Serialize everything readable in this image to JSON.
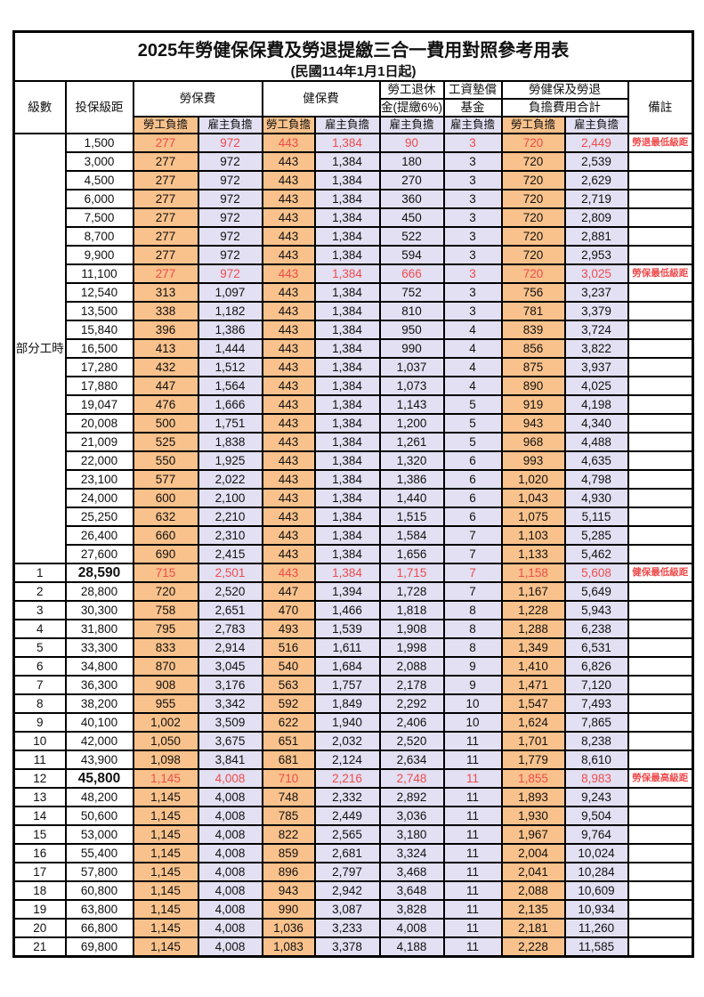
{
  "page": {
    "title": "2025年勞健保保費及勞退提繳三合一費用對照參考用表",
    "subtitle": "(民國114年1月1日起)"
  },
  "colors": {
    "labor_share_bg": "#F9C28C",
    "employer_share_bg": "#E2E0F2",
    "highlight_text": "#F04B4C",
    "border": "#000000"
  },
  "header": {
    "level": "級數",
    "bracket": "投保級距",
    "labor_ins": "勞保費",
    "health_ins": "健保費",
    "pension_l1": "勞工退休",
    "pension_l2": "金(提繳6%)",
    "fund_l1": "工資墊償",
    "fund_l2": "基金",
    "total_l1": "勞健保及勞退",
    "total_l2": "負擔費用合計",
    "remark": "備註",
    "labor_share": "勞工負擔",
    "employer_share": "雇主負擔"
  },
  "part_time": {
    "label": "部分工時",
    "span": 23
  },
  "table": {
    "rows": [
      {
        "lv": "",
        "br": "1,500",
        "v": [
          "277",
          "972",
          "443",
          "1,384",
          "90",
          "3",
          "720",
          "2,449"
        ],
        "rm": "勞退最低級距",
        "red": true,
        "big": false
      },
      {
        "lv": "",
        "br": "3,000",
        "v": [
          "277",
          "972",
          "443",
          "1,384",
          "180",
          "3",
          "720",
          "2,539"
        ],
        "rm": "",
        "red": false,
        "big": false
      },
      {
        "lv": "",
        "br": "4,500",
        "v": [
          "277",
          "972",
          "443",
          "1,384",
          "270",
          "3",
          "720",
          "2,629"
        ],
        "rm": "",
        "red": false,
        "big": false
      },
      {
        "lv": "",
        "br": "6,000",
        "v": [
          "277",
          "972",
          "443",
          "1,384",
          "360",
          "3",
          "720",
          "2,719"
        ],
        "rm": "",
        "red": false,
        "big": false
      },
      {
        "lv": "",
        "br": "7,500",
        "v": [
          "277",
          "972",
          "443",
          "1,384",
          "450",
          "3",
          "720",
          "2,809"
        ],
        "rm": "",
        "red": false,
        "big": false
      },
      {
        "lv": "",
        "br": "8,700",
        "v": [
          "277",
          "972",
          "443",
          "1,384",
          "522",
          "3",
          "720",
          "2,881"
        ],
        "rm": "",
        "red": false,
        "big": false
      },
      {
        "lv": "",
        "br": "9,900",
        "v": [
          "277",
          "972",
          "443",
          "1,384",
          "594",
          "3",
          "720",
          "2,953"
        ],
        "rm": "",
        "red": false,
        "big": false
      },
      {
        "lv": "",
        "br": "11,100",
        "v": [
          "277",
          "972",
          "443",
          "1,384",
          "666",
          "3",
          "720",
          "3,025"
        ],
        "rm": "勞保最低級距",
        "red": true,
        "big": false
      },
      {
        "lv": "",
        "br": "12,540",
        "v": [
          "313",
          "1,097",
          "443",
          "1,384",
          "752",
          "3",
          "756",
          "3,237"
        ],
        "rm": "",
        "red": false,
        "big": false
      },
      {
        "lv": "",
        "br": "13,500",
        "v": [
          "338",
          "1,182",
          "443",
          "1,384",
          "810",
          "3",
          "781",
          "3,379"
        ],
        "rm": "",
        "red": false,
        "big": false
      },
      {
        "lv": "",
        "br": "15,840",
        "v": [
          "396",
          "1,386",
          "443",
          "1,384",
          "950",
          "4",
          "839",
          "3,724"
        ],
        "rm": "",
        "red": false,
        "big": false
      },
      {
        "lv": "",
        "br": "16,500",
        "v": [
          "413",
          "1,444",
          "443",
          "1,384",
          "990",
          "4",
          "856",
          "3,822"
        ],
        "rm": "",
        "red": false,
        "big": false
      },
      {
        "lv": "",
        "br": "17,280",
        "v": [
          "432",
          "1,512",
          "443",
          "1,384",
          "1,037",
          "4",
          "875",
          "3,937"
        ],
        "rm": "",
        "red": false,
        "big": false
      },
      {
        "lv": "",
        "br": "17,880",
        "v": [
          "447",
          "1,564",
          "443",
          "1,384",
          "1,073",
          "4",
          "890",
          "4,025"
        ],
        "rm": "",
        "red": false,
        "big": false
      },
      {
        "lv": "",
        "br": "19,047",
        "v": [
          "476",
          "1,666",
          "443",
          "1,384",
          "1,143",
          "5",
          "919",
          "4,198"
        ],
        "rm": "",
        "red": false,
        "big": false
      },
      {
        "lv": "",
        "br": "20,008",
        "v": [
          "500",
          "1,751",
          "443",
          "1,384",
          "1,200",
          "5",
          "943",
          "4,340"
        ],
        "rm": "",
        "red": false,
        "big": false
      },
      {
        "lv": "",
        "br": "21,009",
        "v": [
          "525",
          "1,838",
          "443",
          "1,384",
          "1,261",
          "5",
          "968",
          "4,488"
        ],
        "rm": "",
        "red": false,
        "big": false
      },
      {
        "lv": "",
        "br": "22,000",
        "v": [
          "550",
          "1,925",
          "443",
          "1,384",
          "1,320",
          "6",
          "993",
          "4,635"
        ],
        "rm": "",
        "red": false,
        "big": false
      },
      {
        "lv": "",
        "br": "23,100",
        "v": [
          "577",
          "2,022",
          "443",
          "1,384",
          "1,386",
          "6",
          "1,020",
          "4,798"
        ],
        "rm": "",
        "red": false,
        "big": false
      },
      {
        "lv": "",
        "br": "24,000",
        "v": [
          "600",
          "2,100",
          "443",
          "1,384",
          "1,440",
          "6",
          "1,043",
          "4,930"
        ],
        "rm": "",
        "red": false,
        "big": false
      },
      {
        "lv": "",
        "br": "25,250",
        "v": [
          "632",
          "2,210",
          "443",
          "1,384",
          "1,515",
          "6",
          "1,075",
          "5,115"
        ],
        "rm": "",
        "red": false,
        "big": false
      },
      {
        "lv": "",
        "br": "26,400",
        "v": [
          "660",
          "2,310",
          "443",
          "1,384",
          "1,584",
          "7",
          "1,103",
          "5,285"
        ],
        "rm": "",
        "red": false,
        "big": false
      },
      {
        "lv": "",
        "br": "27,600",
        "v": [
          "690",
          "2,415",
          "443",
          "1,384",
          "1,656",
          "7",
          "1,133",
          "5,462"
        ],
        "rm": "",
        "red": false,
        "big": false
      },
      {
        "lv": "1",
        "br": "28,590",
        "v": [
          "715",
          "2,501",
          "443",
          "1,384",
          "1,715",
          "7",
          "1,158",
          "5,608"
        ],
        "rm": "健保最低級距",
        "red": true,
        "big": true
      },
      {
        "lv": "2",
        "br": "28,800",
        "v": [
          "720",
          "2,520",
          "447",
          "1,394",
          "1,728",
          "7",
          "1,167",
          "5,649"
        ],
        "rm": "",
        "red": false,
        "big": false
      },
      {
        "lv": "3",
        "br": "30,300",
        "v": [
          "758",
          "2,651",
          "470",
          "1,466",
          "1,818",
          "8",
          "1,228",
          "5,943"
        ],
        "rm": "",
        "red": false,
        "big": false
      },
      {
        "lv": "4",
        "br": "31,800",
        "v": [
          "795",
          "2,783",
          "493",
          "1,539",
          "1,908",
          "8",
          "1,288",
          "6,238"
        ],
        "rm": "",
        "red": false,
        "big": false
      },
      {
        "lv": "5",
        "br": "33,300",
        "v": [
          "833",
          "2,914",
          "516",
          "1,611",
          "1,998",
          "8",
          "1,349",
          "6,531"
        ],
        "rm": "",
        "red": false,
        "big": false
      },
      {
        "lv": "6",
        "br": "34,800",
        "v": [
          "870",
          "3,045",
          "540",
          "1,684",
          "2,088",
          "9",
          "1,410",
          "6,826"
        ],
        "rm": "",
        "red": false,
        "big": false
      },
      {
        "lv": "7",
        "br": "36,300",
        "v": [
          "908",
          "3,176",
          "563",
          "1,757",
          "2,178",
          "9",
          "1,471",
          "7,120"
        ],
        "rm": "",
        "red": false,
        "big": false
      },
      {
        "lv": "8",
        "br": "38,200",
        "v": [
          "955",
          "3,342",
          "592",
          "1,849",
          "2,292",
          "10",
          "1,547",
          "7,493"
        ],
        "rm": "",
        "red": false,
        "big": false
      },
      {
        "lv": "9",
        "br": "40,100",
        "v": [
          "1,002",
          "3,509",
          "622",
          "1,940",
          "2,406",
          "10",
          "1,624",
          "7,865"
        ],
        "rm": "",
        "red": false,
        "big": false
      },
      {
        "lv": "10",
        "br": "42,000",
        "v": [
          "1,050",
          "3,675",
          "651",
          "2,032",
          "2,520",
          "11",
          "1,701",
          "8,238"
        ],
        "rm": "",
        "red": false,
        "big": false
      },
      {
        "lv": "11",
        "br": "43,900",
        "v": [
          "1,098",
          "3,841",
          "681",
          "2,124",
          "2,634",
          "11",
          "1,779",
          "8,610"
        ],
        "rm": "",
        "red": false,
        "big": false
      },
      {
        "lv": "12",
        "br": "45,800",
        "v": [
          "1,145",
          "4,008",
          "710",
          "2,216",
          "2,748",
          "11",
          "1,855",
          "8,983"
        ],
        "rm": "勞保最高級距",
        "red": true,
        "big": true
      },
      {
        "lv": "13",
        "br": "48,200",
        "v": [
          "1,145",
          "4,008",
          "748",
          "2,332",
          "2,892",
          "11",
          "1,893",
          "9,243"
        ],
        "rm": "",
        "red": false,
        "big": false
      },
      {
        "lv": "14",
        "br": "50,600",
        "v": [
          "1,145",
          "4,008",
          "785",
          "2,449",
          "3,036",
          "11",
          "1,930",
          "9,504"
        ],
        "rm": "",
        "red": false,
        "big": false
      },
      {
        "lv": "15",
        "br": "53,000",
        "v": [
          "1,145",
          "4,008",
          "822",
          "2,565",
          "3,180",
          "11",
          "1,967",
          "9,764"
        ],
        "rm": "",
        "red": false,
        "big": false
      },
      {
        "lv": "16",
        "br": "55,400",
        "v": [
          "1,145",
          "4,008",
          "859",
          "2,681",
          "3,324",
          "11",
          "2,004",
          "10,024"
        ],
        "rm": "",
        "red": false,
        "big": false
      },
      {
        "lv": "17",
        "br": "57,800",
        "v": [
          "1,145",
          "4,008",
          "896",
          "2,797",
          "3,468",
          "11",
          "2,041",
          "10,284"
        ],
        "rm": "",
        "red": false,
        "big": false
      },
      {
        "lv": "18",
        "br": "60,800",
        "v": [
          "1,145",
          "4,008",
          "943",
          "2,942",
          "3,648",
          "11",
          "2,088",
          "10,609"
        ],
        "rm": "",
        "red": false,
        "big": false
      },
      {
        "lv": "19",
        "br": "63,800",
        "v": [
          "1,145",
          "4,008",
          "990",
          "3,087",
          "3,828",
          "11",
          "2,135",
          "10,934"
        ],
        "rm": "",
        "red": false,
        "big": false
      },
      {
        "lv": "20",
        "br": "66,800",
        "v": [
          "1,145",
          "4,008",
          "1,036",
          "3,233",
          "4,008",
          "11",
          "2,181",
          "11,260"
        ],
        "rm": "",
        "red": false,
        "big": false
      },
      {
        "lv": "21",
        "br": "69,800",
        "v": [
          "1,145",
          "4,008",
          "1,083",
          "3,378",
          "4,188",
          "11",
          "2,228",
          "11,585"
        ],
        "rm": "",
        "red": false,
        "big": false
      }
    ]
  }
}
